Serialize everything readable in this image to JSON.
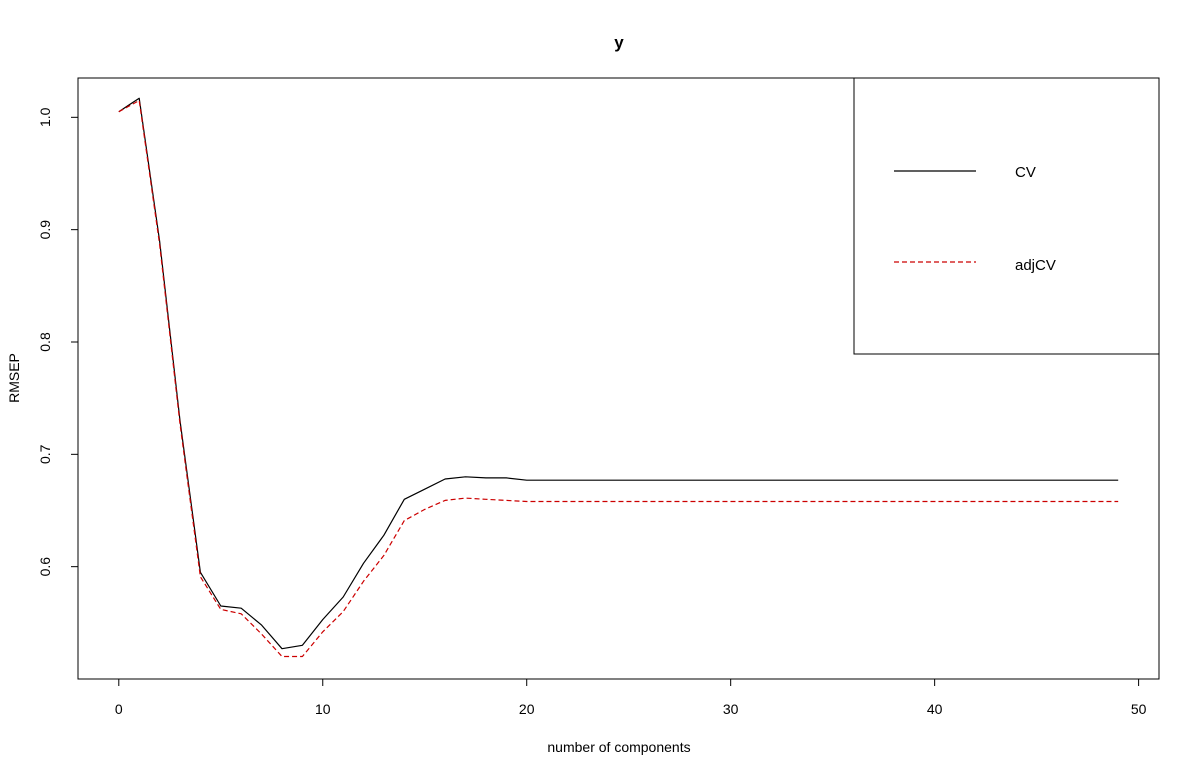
{
  "chart_data": {
    "type": "line",
    "title": "y",
    "xlabel": "number of components",
    "ylabel": "RMSEP",
    "xlim": [
      -2,
      51
    ],
    "ylim": [
      0.5,
      1.035
    ],
    "xticks": [
      0,
      10,
      20,
      30,
      40,
      50
    ],
    "yticks": [
      0.6,
      0.7,
      0.8,
      0.9,
      1.0
    ],
    "ytick_labels": [
      "0.6",
      "0.7",
      "0.8",
      "0.9",
      "1.0"
    ],
    "grid": false,
    "legend_position": "top-right",
    "x": [
      0,
      1,
      2,
      3,
      4,
      5,
      6,
      7,
      8,
      9,
      10,
      11,
      12,
      13,
      14,
      15,
      16,
      17,
      18,
      19,
      20,
      21,
      22,
      23,
      24,
      25,
      26,
      27,
      28,
      29,
      30,
      31,
      32,
      33,
      34,
      35,
      36,
      37,
      38,
      39,
      40,
      41,
      42,
      43,
      44,
      45,
      46,
      47,
      48,
      49
    ],
    "series": [
      {
        "name": "CV",
        "color": "#000000",
        "dash": "solid",
        "values": [
          1.005,
          1.017,
          0.89,
          0.73,
          0.595,
          0.565,
          0.563,
          0.548,
          0.527,
          0.53,
          0.553,
          0.573,
          0.603,
          0.628,
          0.66,
          0.669,
          0.678,
          0.68,
          0.679,
          0.679,
          0.677,
          0.677,
          0.677,
          0.677,
          0.677,
          0.677,
          0.677,
          0.677,
          0.677,
          0.677,
          0.677,
          0.677,
          0.677,
          0.677,
          0.677,
          0.677,
          0.677,
          0.677,
          0.677,
          0.677,
          0.677,
          0.677,
          0.677,
          0.677,
          0.677,
          0.677,
          0.677,
          0.677,
          0.677,
          0.677
        ]
      },
      {
        "name": "adjCV",
        "color": "#cc0000",
        "dash": "dashed",
        "values": [
          1.005,
          1.015,
          0.887,
          0.727,
          0.591,
          0.562,
          0.558,
          0.54,
          0.52,
          0.52,
          0.542,
          0.56,
          0.587,
          0.61,
          0.641,
          0.651,
          0.659,
          0.661,
          0.66,
          0.659,
          0.658,
          0.658,
          0.658,
          0.658,
          0.658,
          0.658,
          0.658,
          0.658,
          0.658,
          0.658,
          0.658,
          0.658,
          0.658,
          0.658,
          0.658,
          0.658,
          0.658,
          0.658,
          0.658,
          0.658,
          0.658,
          0.658,
          0.658,
          0.658,
          0.658,
          0.658,
          0.658,
          0.658,
          0.658,
          0.658
        ]
      }
    ]
  }
}
